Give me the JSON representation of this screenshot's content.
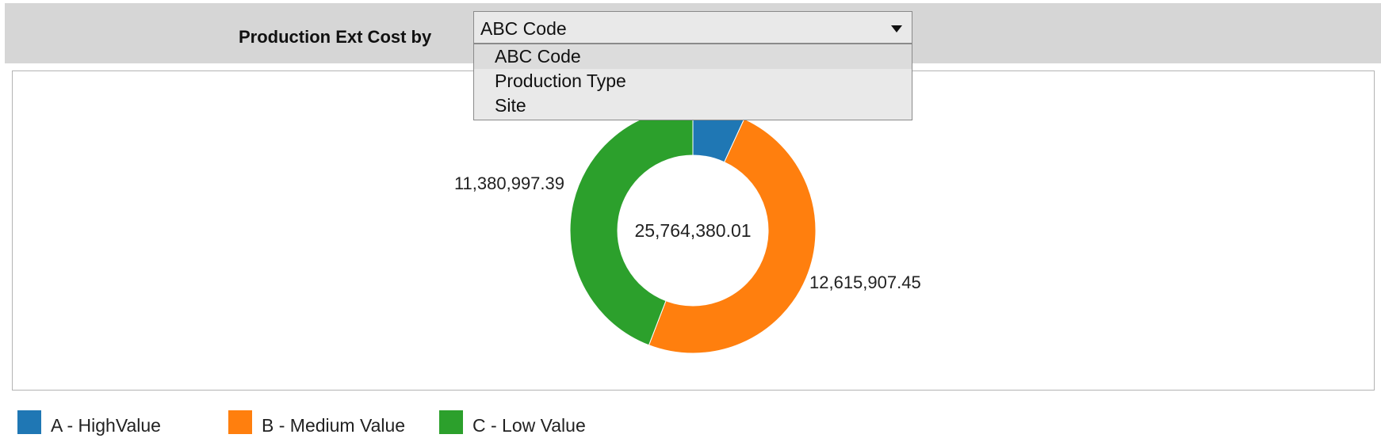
{
  "toolbar": {
    "label": "Production Ext Cost by",
    "select": {
      "value": "ABC Code",
      "options": [
        "ABC Code",
        "Production Type",
        "Site"
      ],
      "selected_index": 0
    }
  },
  "chart_data": {
    "type": "pie",
    "variant": "donut",
    "center_label": "25,764,380.01",
    "categories": [
      "A - HighValue",
      "B - Medium Value",
      "C - Low Value"
    ],
    "values": [
      1767475.17,
      12615907.45,
      11380997.39
    ],
    "data_labels": [
      "",
      "12,615,907.45",
      "11,380,997.39"
    ],
    "colors": [
      "#1f77b4",
      "#ff7f0e",
      "#2ca02c"
    ],
    "legend_position": "bottom-left"
  }
}
